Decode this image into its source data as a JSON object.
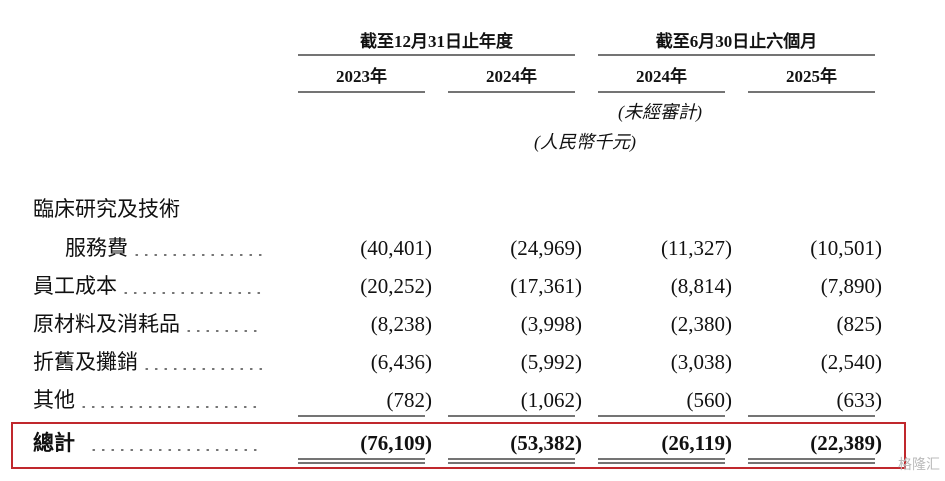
{
  "header": {
    "groups": [
      "截至12月31日止年度",
      "截至6月30日止六個月"
    ],
    "years": [
      "2023年",
      "2024年",
      "2024年",
      "2025年"
    ],
    "unaudited": "(未經審計)",
    "unit": "(人民幣千元)"
  },
  "table": {
    "rows": [
      {
        "label": "臨床研究及技術",
        "label_cont": "服務費",
        "values": [
          "(40,401)",
          "(24,969)",
          "(11,327)",
          "(10,501)"
        ]
      },
      {
        "label": "員工成本",
        "values": [
          "(20,252)",
          "(17,361)",
          "(8,814)",
          "(7,890)"
        ]
      },
      {
        "label": "原材料及消耗品",
        "values": [
          "(8,238)",
          "(3,998)",
          "(2,380)",
          "(825)"
        ]
      },
      {
        "label": "折舊及攤銷",
        "values": [
          "(6,436)",
          "(5,992)",
          "(3,038)",
          "(2,540)"
        ]
      },
      {
        "label": "其他",
        "values": [
          "(782)",
          "(1,062)",
          "(560)",
          "(633)"
        ]
      }
    ],
    "total": {
      "label": "總計",
      "values": [
        "(76,109)",
        "(53,382)",
        "(26,119)",
        "(22,389)"
      ]
    }
  },
  "watermark": "格隆汇"
}
